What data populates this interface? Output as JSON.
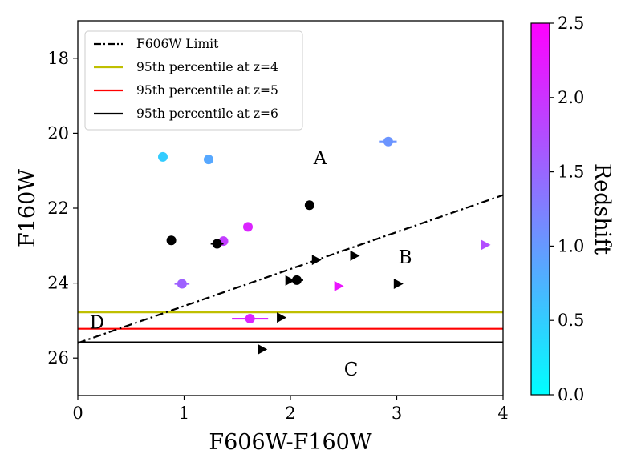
{
  "chart_data": {
    "type": "scatter",
    "xlabel": "F606W-F160W",
    "ylabel": "F160W",
    "xlim": [
      0,
      4
    ],
    "ylim": [
      27,
      17
    ],
    "y_inverted": true,
    "x_ticks": [
      0,
      1,
      2,
      3,
      4
    ],
    "y_ticks": [
      18,
      20,
      22,
      24,
      26
    ],
    "colorbar": {
      "label": "Redshift",
      "range": [
        0.0,
        2.5
      ],
      "ticks": [
        "0.0",
        "0.5",
        "1.0",
        "1.5",
        "2.0",
        "2.5"
      ],
      "colormap": "cool",
      "color_low": "#00ffff",
      "color_high": "#ff00ff"
    },
    "limit_line": {
      "name": "F606W Limit",
      "style": "dash-dot",
      "color": "#000000",
      "x": [
        0,
        4
      ],
      "y": [
        25.6,
        21.65
      ]
    },
    "hlines": [
      {
        "name": "95th percentile at z=4",
        "y": 24.78,
        "color": "#bfbf00"
      },
      {
        "name": "95th percentile at z=5",
        "y": 25.22,
        "color": "#ff0000"
      },
      {
        "name": "95th percentile at z=6",
        "y": 25.58,
        "color": "#000000"
      }
    ],
    "legend": [
      "F606W Limit",
      "95th percentile at z=4",
      "95th percentile at z=5",
      "95th percentile at z=6"
    ],
    "legend_loc": "upper-left",
    "region_labels": [
      {
        "text": "A",
        "x": 2.28,
        "y": 20.65
      },
      {
        "text": "B",
        "x": 3.08,
        "y": 23.3
      },
      {
        "text": "C",
        "x": 2.57,
        "y": 26.3
      },
      {
        "text": "D",
        "x": 0.18,
        "y": 25.05
      }
    ],
    "points_colored": [
      {
        "x": 0.8,
        "y": 20.63,
        "z": 0.5
      },
      {
        "x": 1.23,
        "y": 20.7,
        "z": 0.85
      },
      {
        "x": 2.92,
        "y": 20.22,
        "z": 1.05,
        "xerr": 0.08
      },
      {
        "x": 1.6,
        "y": 22.5,
        "z": 2.15
      },
      {
        "x": 1.37,
        "y": 22.88,
        "z": 1.9
      },
      {
        "x": 0.98,
        "y": 24.02,
        "z": 1.55,
        "xerr": 0.07
      },
      {
        "x": 1.62,
        "y": 24.95,
        "z": 2.15,
        "xerr": 0.17
      }
    ],
    "points_black": [
      {
        "x": 0.88,
        "y": 22.86
      },
      {
        "x": 1.31,
        "y": 22.95,
        "xerr": 0.06
      },
      {
        "x": 2.18,
        "y": 21.92
      },
      {
        "x": 2.06,
        "y": 23.92,
        "xerr": 0.06
      }
    ],
    "lower_limits_colored": [
      {
        "x": 3.83,
        "y": 22.98,
        "z": 1.75
      },
      {
        "x": 2.45,
        "y": 24.08,
        "z": 2.3
      }
    ],
    "lower_limits_black": [
      {
        "x": 2.24,
        "y": 23.38
      },
      {
        "x": 2.6,
        "y": 23.27
      },
      {
        "x": 1.99,
        "y": 23.93
      },
      {
        "x": 3.01,
        "y": 24.02
      },
      {
        "x": 1.91,
        "y": 24.92
      },
      {
        "x": 1.73,
        "y": 25.77
      }
    ]
  }
}
